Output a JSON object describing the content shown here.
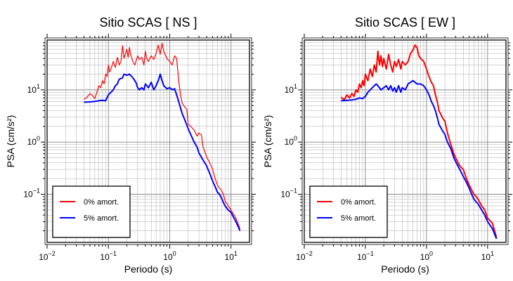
{
  "chart_data": [
    {
      "type": "line",
      "title": "Sitio SCAS [ NS ]",
      "xlabel": "Periodo (s)",
      "ylabel": "PSA (cm/s²)",
      "x_scale": "log",
      "y_scale": "log",
      "xlim": [
        0.01,
        20
      ],
      "ylim": [
        0.012,
        90
      ],
      "x_tick_labels": [
        {
          "value": 0.01,
          "base": "10",
          "exp": "−2"
        },
        {
          "value": 0.1,
          "base": "10",
          "exp": "−1"
        },
        {
          "value": 1,
          "base": "10",
          "exp": "0"
        },
        {
          "value": 10,
          "base": "10",
          "exp": "1"
        }
      ],
      "y_tick_labels": [
        {
          "value": 0.1,
          "base": "10",
          "exp": "−1"
        },
        {
          "value": 1,
          "base": "10",
          "exp": "0"
        },
        {
          "value": 10,
          "base": "10",
          "exp": "1"
        }
      ],
      "grid": true,
      "legend_position": "bottom-left",
      "series": [
        {
          "name": "0% amort.",
          "color": "#ff0000",
          "points": [
            [
              0.04,
              6.5
            ],
            [
              0.045,
              7.3
            ],
            [
              0.05,
              8.5
            ],
            [
              0.055,
              7.8
            ],
            [
              0.06,
              6.8
            ],
            [
              0.065,
              9
            ],
            [
              0.07,
              12
            ],
            [
              0.075,
              11
            ],
            [
              0.08,
              15
            ],
            [
              0.085,
              13
            ],
            [
              0.09,
              20
            ],
            [
              0.095,
              18
            ],
            [
              0.1,
              30
            ],
            [
              0.105,
              22
            ],
            [
              0.11,
              25
            ],
            [
              0.12,
              35
            ],
            [
              0.13,
              27
            ],
            [
              0.14,
              42
            ],
            [
              0.15,
              30
            ],
            [
              0.16,
              35
            ],
            [
              0.17,
              70
            ],
            [
              0.18,
              40
            ],
            [
              0.19,
              50
            ],
            [
              0.2,
              60
            ],
            [
              0.21,
              42
            ],
            [
              0.22,
              65
            ],
            [
              0.23,
              48
            ],
            [
              0.25,
              35
            ],
            [
              0.27,
              30
            ],
            [
              0.3,
              45
            ],
            [
              0.32,
              38
            ],
            [
              0.35,
              42
            ],
            [
              0.38,
              30
            ],
            [
              0.4,
              55
            ],
            [
              0.42,
              40
            ],
            [
              0.45,
              35
            ],
            [
              0.5,
              45
            ],
            [
              0.55,
              38
            ],
            [
              0.6,
              50
            ],
            [
              0.65,
              72
            ],
            [
              0.7,
              48
            ],
            [
              0.75,
              78
            ],
            [
              0.8,
              55
            ],
            [
              0.9,
              40
            ],
            [
              1.0,
              35
            ],
            [
              1.1,
              30
            ],
            [
              1.2,
              45
            ],
            [
              1.3,
              40
            ],
            [
              1.4,
              15
            ],
            [
              1.5,
              8
            ],
            [
              1.6,
              5.5
            ],
            [
              1.7,
              5
            ],
            [
              1.8,
              4.5
            ],
            [
              1.9,
              4.3
            ],
            [
              2.0,
              2.2
            ],
            [
              2.2,
              2.0
            ],
            [
              2.5,
              1.7
            ],
            [
              2.8,
              1.3
            ],
            [
              3.0,
              1.5
            ],
            [
              3.3,
              1.35
            ],
            [
              3.5,
              0.8
            ],
            [
              4.0,
              0.52
            ],
            [
              4.5,
              0.4
            ],
            [
              5.0,
              0.3
            ],
            [
              5.5,
              0.2
            ],
            [
              6.0,
              0.15
            ],
            [
              6.5,
              0.13
            ],
            [
              7.0,
              0.12
            ],
            [
              7.5,
              0.1
            ],
            [
              8.0,
              0.075
            ],
            [
              9.0,
              0.06
            ],
            [
              10.0,
              0.05
            ],
            [
              12.0,
              0.035
            ],
            [
              14.0,
              0.022
            ]
          ]
        },
        {
          "name": "5% amort.",
          "color": "#0000ff",
          "points": [
            [
              0.04,
              5.8
            ],
            [
              0.05,
              5.9
            ],
            [
              0.06,
              6.0
            ],
            [
              0.07,
              6.2
            ],
            [
              0.08,
              6.3
            ],
            [
              0.09,
              6.2
            ],
            [
              0.1,
              8
            ],
            [
              0.11,
              9
            ],
            [
              0.12,
              10
            ],
            [
              0.13,
              12
            ],
            [
              0.14,
              13
            ],
            [
              0.15,
              16
            ],
            [
              0.17,
              17
            ],
            [
              0.18,
              20
            ],
            [
              0.2,
              19
            ],
            [
              0.22,
              20
            ],
            [
              0.24,
              18
            ],
            [
              0.26,
              16
            ],
            [
              0.28,
              14
            ],
            [
              0.3,
              11
            ],
            [
              0.32,
              10
            ],
            [
              0.35,
              11
            ],
            [
              0.38,
              10
            ],
            [
              0.4,
              13
            ],
            [
              0.45,
              11
            ],
            [
              0.5,
              14
            ],
            [
              0.55,
              10
            ],
            [
              0.6,
              12
            ],
            [
              0.65,
              15
            ],
            [
              0.7,
              20
            ],
            [
              0.75,
              15
            ],
            [
              0.8,
              12
            ],
            [
              0.9,
              10.5
            ],
            [
              1.0,
              11
            ],
            [
              1.1,
              10
            ],
            [
              1.2,
              10.5
            ],
            [
              1.3,
              8
            ],
            [
              1.4,
              6
            ],
            [
              1.5,
              4.5
            ],
            [
              1.6,
              3.5
            ],
            [
              1.8,
              2.5
            ],
            [
              2.0,
              1.8
            ],
            [
              2.2,
              1.4
            ],
            [
              2.5,
              1.0
            ],
            [
              2.8,
              0.8
            ],
            [
              3.0,
              0.62
            ],
            [
              3.5,
              0.45
            ],
            [
              4.0,
              0.35
            ],
            [
              4.5,
              0.25
            ],
            [
              5.0,
              0.18
            ],
            [
              5.5,
              0.14
            ],
            [
              6.0,
              0.11
            ],
            [
              6.5,
              0.1
            ],
            [
              7.0,
              0.085
            ],
            [
              7.5,
              0.07
            ],
            [
              8.0,
              0.06
            ],
            [
              9.0,
              0.05
            ],
            [
              10.0,
              0.045
            ],
            [
              12.0,
              0.03
            ],
            [
              14.0,
              0.02
            ]
          ]
        }
      ]
    },
    {
      "type": "line",
      "title": "Sitio SCAS [ EW ]",
      "xlabel": "Periodo (s)",
      "ylabel": "PSA (cm/s²)",
      "x_scale": "log",
      "y_scale": "log",
      "xlim": [
        0.01,
        20
      ],
      "ylim": [
        0.012,
        90
      ],
      "x_tick_labels": [
        {
          "value": 0.01,
          "base": "10",
          "exp": "−2"
        },
        {
          "value": 0.1,
          "base": "10",
          "exp": "−1"
        },
        {
          "value": 1,
          "base": "10",
          "exp": "0"
        },
        {
          "value": 10,
          "base": "10",
          "exp": "1"
        }
      ],
      "y_tick_labels": [
        {
          "value": 0.1,
          "base": "10",
          "exp": "−1"
        },
        {
          "value": 1,
          "base": "10",
          "exp": "0"
        },
        {
          "value": 10,
          "base": "10",
          "exp": "1"
        }
      ],
      "grid": true,
      "legend_position": "bottom-left",
      "series": [
        {
          "name": "0% amort.",
          "color": "#ff0000",
          "points": [
            [
              0.04,
              7.2
            ],
            [
              0.045,
              6.5
            ],
            [
              0.05,
              8
            ],
            [
              0.055,
              7
            ],
            [
              0.06,
              8.5
            ],
            [
              0.065,
              7.5
            ],
            [
              0.07,
              10
            ],
            [
              0.075,
              9
            ],
            [
              0.08,
              13
            ],
            [
              0.085,
              11
            ],
            [
              0.09,
              15
            ],
            [
              0.095,
              12
            ],
            [
              0.1,
              20
            ],
            [
              0.11,
              15
            ],
            [
              0.12,
              25
            ],
            [
              0.13,
              18
            ],
            [
              0.14,
              30
            ],
            [
              0.15,
              22
            ],
            [
              0.16,
              55
            ],
            [
              0.17,
              30
            ],
            [
              0.18,
              45
            ],
            [
              0.19,
              28
            ],
            [
              0.2,
              40
            ],
            [
              0.22,
              25
            ],
            [
              0.24,
              48
            ],
            [
              0.26,
              30
            ],
            [
              0.28,
              22
            ],
            [
              0.3,
              35
            ],
            [
              0.32,
              28
            ],
            [
              0.35,
              38
            ],
            [
              0.38,
              25
            ],
            [
              0.4,
              35
            ],
            [
              0.45,
              30
            ],
            [
              0.5,
              35
            ],
            [
              0.55,
              50
            ],
            [
              0.6,
              58
            ],
            [
              0.65,
              72
            ],
            [
              0.7,
              65
            ],
            [
              0.75,
              45
            ],
            [
              0.8,
              40
            ],
            [
              0.9,
              35
            ],
            [
              1.0,
              25
            ],
            [
              1.1,
              18
            ],
            [
              1.2,
              14
            ],
            [
              1.3,
              12
            ],
            [
              1.4,
              8
            ],
            [
              1.5,
              6
            ],
            [
              1.6,
              4
            ],
            [
              1.7,
              3.5
            ],
            [
              1.8,
              3
            ],
            [
              2.0,
              2.5
            ],
            [
              2.2,
              1.5
            ],
            [
              2.5,
              0.9
            ],
            [
              2.8,
              0.6
            ],
            [
              3.0,
              0.5
            ],
            [
              3.5,
              0.35
            ],
            [
              4.0,
              0.3
            ],
            [
              4.5,
              0.2
            ],
            [
              5.0,
              0.15
            ],
            [
              5.5,
              0.12
            ],
            [
              6.0,
              0.1
            ],
            [
              6.5,
              0.09
            ],
            [
              7.0,
              0.08
            ],
            [
              8.0,
              0.06
            ],
            [
              9.0,
              0.05
            ],
            [
              10.0,
              0.035
            ],
            [
              12.0,
              0.028
            ],
            [
              14.0,
              0.015
            ]
          ]
        },
        {
          "name": "5% amort.",
          "color": "#0000ff",
          "points": [
            [
              0.04,
              6.2
            ],
            [
              0.05,
              6.3
            ],
            [
              0.06,
              6.4
            ],
            [
              0.07,
              6.6
            ],
            [
              0.08,
              7
            ],
            [
              0.09,
              6.8
            ],
            [
              0.1,
              7.5
            ],
            [
              0.11,
              9
            ],
            [
              0.12,
              10
            ],
            [
              0.13,
              11
            ],
            [
              0.14,
              12
            ],
            [
              0.15,
              13
            ],
            [
              0.16,
              12
            ],
            [
              0.18,
              10
            ],
            [
              0.2,
              11
            ],
            [
              0.22,
              12
            ],
            [
              0.24,
              10
            ],
            [
              0.26,
              12
            ],
            [
              0.28,
              9.5
            ],
            [
              0.3,
              11
            ],
            [
              0.32,
              9
            ],
            [
              0.35,
              12
            ],
            [
              0.38,
              9
            ],
            [
              0.4,
              11
            ],
            [
              0.45,
              10
            ],
            [
              0.5,
              13
            ],
            [
              0.55,
              14
            ],
            [
              0.6,
              15
            ],
            [
              0.65,
              14
            ],
            [
              0.7,
              13
            ],
            [
              0.8,
              13
            ],
            [
              0.9,
              12
            ],
            [
              1.0,
              10
            ],
            [
              1.1,
              8
            ],
            [
              1.2,
              6
            ],
            [
              1.3,
              5
            ],
            [
              1.4,
              4
            ],
            [
              1.5,
              3
            ],
            [
              1.6,
              2.2
            ],
            [
              1.8,
              1.7
            ],
            [
              2.0,
              1.4
            ],
            [
              2.2,
              1.0
            ],
            [
              2.5,
              0.75
            ],
            [
              2.8,
              0.5
            ],
            [
              3.0,
              0.42
            ],
            [
              3.5,
              0.3
            ],
            [
              4.0,
              0.22
            ],
            [
              4.5,
              0.17
            ],
            [
              5.0,
              0.13
            ],
            [
              5.5,
              0.1
            ],
            [
              6.0,
              0.08
            ],
            [
              7.0,
              0.065
            ],
            [
              8.0,
              0.05
            ],
            [
              9.0,
              0.04
            ],
            [
              10.0,
              0.03
            ],
            [
              12.0,
              0.022
            ],
            [
              14.0,
              0.014
            ]
          ]
        }
      ]
    }
  ]
}
